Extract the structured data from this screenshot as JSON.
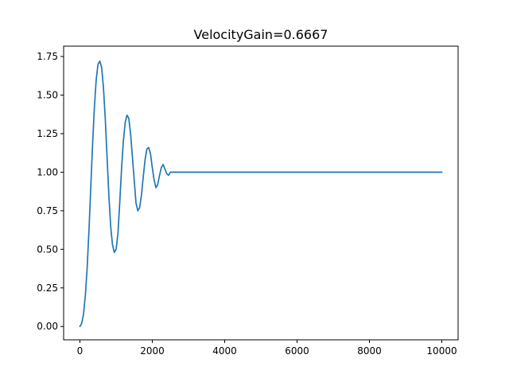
{
  "chart_data": {
    "type": "line",
    "title": "VelocityGain=0.6667",
    "xlabel": "",
    "ylabel": "",
    "xlim": [
      -450,
      10450
    ],
    "ylim": [
      -0.0865,
      1.817
    ],
    "xticks": [
      0,
      2000,
      4000,
      6000,
      8000,
      10000
    ],
    "yticks": [
      0.0,
      0.25,
      0.5,
      0.75,
      1.0,
      1.25,
      1.5,
      1.75
    ],
    "ytick_labels": [
      "0.00",
      "0.25",
      "0.50",
      "0.75",
      "1.00",
      "1.25",
      "1.50",
      "1.75"
    ],
    "grid": false,
    "legend": "none",
    "series": [
      {
        "color": "#1f77b4",
        "x": [
          0,
          50,
          100,
          150,
          200,
          250,
          300,
          350,
          400,
          450,
          500,
          550,
          600,
          650,
          700,
          750,
          800,
          850,
          900,
          950,
          1000,
          1050,
          1100,
          1150,
          1200,
          1250,
          1300,
          1350,
          1400,
          1450,
          1500,
          1550,
          1600,
          1650,
          1700,
          1750,
          1800,
          1850,
          1900,
          1950,
          2000,
          2050,
          2100,
          2150,
          2200,
          2250,
          2300,
          2350,
          2400,
          2450,
          2500,
          2550,
          2600,
          2650,
          2700,
          3000,
          4000,
          5000,
          6000,
          7000,
          8000,
          9000,
          10000
        ],
        "y": [
          0.0,
          0.02,
          0.08,
          0.2,
          0.38,
          0.62,
          0.9,
          1.18,
          1.42,
          1.6,
          1.7,
          1.72,
          1.68,
          1.55,
          1.35,
          1.1,
          0.85,
          0.65,
          0.53,
          0.48,
          0.5,
          0.6,
          0.8,
          1.02,
          1.2,
          1.32,
          1.37,
          1.35,
          1.25,
          1.1,
          0.95,
          0.8,
          0.75,
          0.77,
          0.85,
          0.97,
          1.08,
          1.15,
          1.16,
          1.12,
          1.03,
          0.95,
          0.9,
          0.92,
          0.98,
          1.03,
          1.05,
          1.02,
          0.99,
          0.98,
          1.0,
          1.0,
          1.0,
          1.0,
          1.0,
          1.0,
          1.0,
          1.0,
          1.0,
          1.0,
          1.0,
          1.0,
          1.0
        ]
      }
    ]
  }
}
